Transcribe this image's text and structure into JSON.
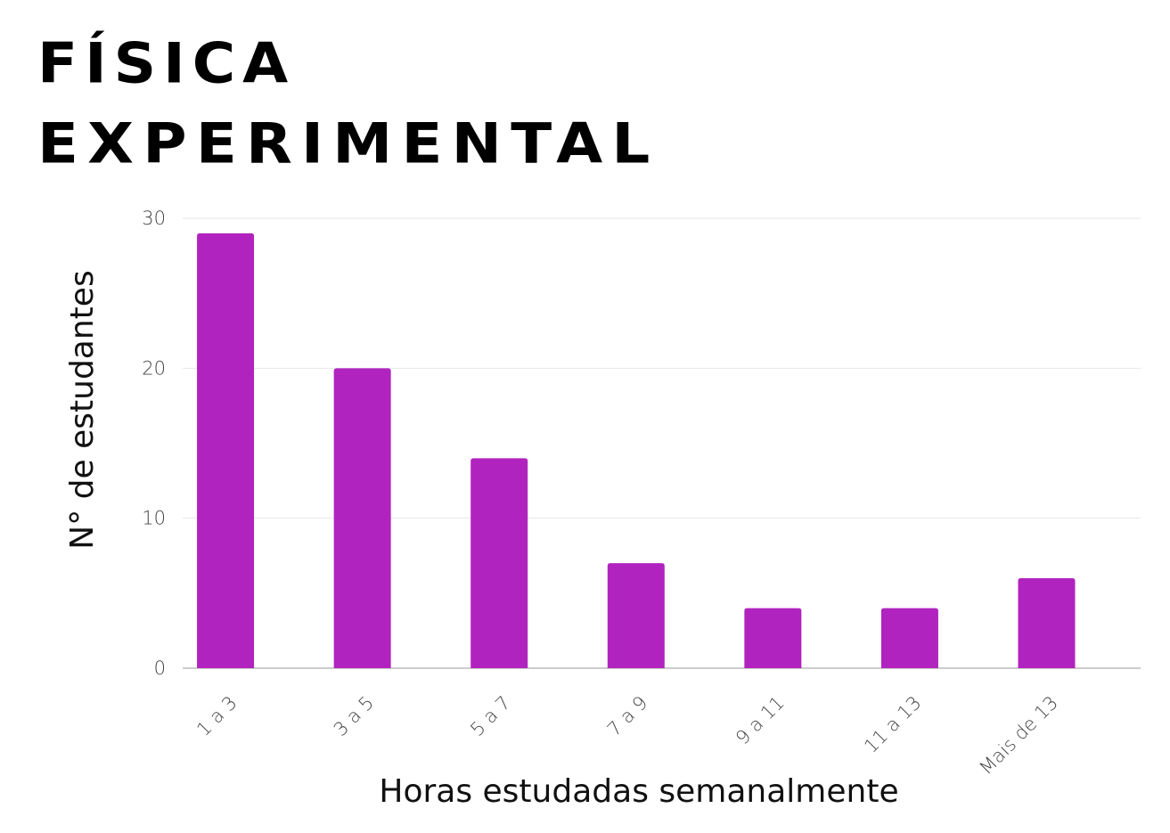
{
  "title": {
    "line1": "FÍSICA",
    "line2": "EXPERIMENTAL"
  },
  "chart_data": {
    "type": "bar",
    "categories": [
      "1 a 3",
      "3 a 5",
      "5 a 7",
      "7 a 9",
      "9 a 11",
      "11 a 13",
      "Mais de 13"
    ],
    "series": [
      {
        "values": [
          29,
          20,
          14,
          7,
          4,
          4,
          6
        ]
      }
    ],
    "xlabel": "Horas estudadas semanalmente",
    "ylabel": "N° de estudantes",
    "ylim": [
      0,
      30
    ],
    "yticks": [
      0,
      10,
      20,
      30
    ],
    "grid": true,
    "bar_color": "#b123be",
    "gridline_color": "#e6e6e6",
    "axis_color": "#999999"
  }
}
